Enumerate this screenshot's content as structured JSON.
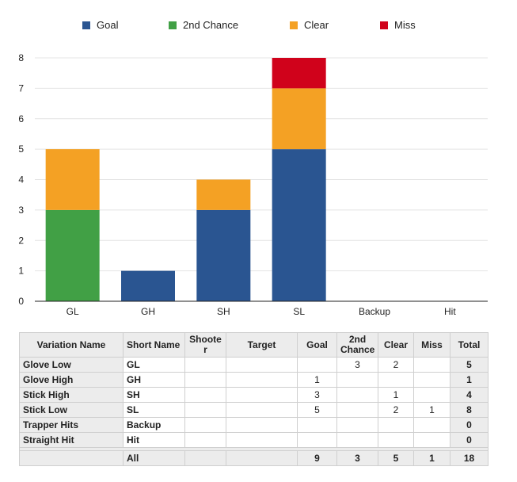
{
  "chart_data": {
    "type": "bar",
    "stacked": true,
    "categories": [
      "GL",
      "GH",
      "SH",
      "SL",
      "Backup",
      "Hit"
    ],
    "series": [
      {
        "name": "Goal",
        "color": "#2a5591",
        "values": [
          0,
          1,
          3,
          5,
          0,
          0
        ]
      },
      {
        "name": "2nd Chance",
        "color": "#41a045",
        "values": [
          3,
          0,
          0,
          0,
          0,
          0
        ]
      },
      {
        "name": "Clear",
        "color": "#f4a124",
        "values": [
          2,
          0,
          1,
          2,
          0,
          0
        ]
      },
      {
        "name": "Miss",
        "color": "#d0021b",
        "values": [
          0,
          0,
          0,
          1,
          0,
          0
        ]
      }
    ],
    "title": "",
    "xlabel": "",
    "ylabel": "",
    "ylim": [
      0,
      8
    ],
    "yticks": [
      0,
      1,
      2,
      3,
      4,
      5,
      6,
      7,
      8
    ],
    "grid": true,
    "legend_position": "top"
  },
  "table": {
    "headers": {
      "variation": "Variation Name",
      "short": "Short Name",
      "shooter": "Shooter",
      "target": "Target",
      "goal": "Goal",
      "second": "2nd Chance",
      "clear": "Clear",
      "miss": "Miss",
      "total": "Total"
    },
    "rows": [
      {
        "name": "Glove Low",
        "short": "GL",
        "shooter": "",
        "target": "",
        "goal": "",
        "second": "3",
        "clear": "2",
        "miss": "",
        "total": "5"
      },
      {
        "name": "Glove High",
        "short": "GH",
        "shooter": "",
        "target": "",
        "goal": "1",
        "second": "",
        "clear": "",
        "miss": "",
        "total": "1"
      },
      {
        "name": "Stick High",
        "short": "SH",
        "shooter": "",
        "target": "",
        "goal": "3",
        "second": "",
        "clear": "1",
        "miss": "",
        "total": "4"
      },
      {
        "name": "Stick Low",
        "short": "SL",
        "shooter": "",
        "target": "",
        "goal": "5",
        "second": "",
        "clear": "2",
        "miss": "1",
        "total": "8"
      },
      {
        "name": "Trapper Hits",
        "short": "Backup",
        "shooter": "",
        "target": "",
        "goal": "",
        "second": "",
        "clear": "",
        "miss": "",
        "total": "0"
      },
      {
        "name": "Straight Hit",
        "short": "Hit",
        "shooter": "",
        "target": "",
        "goal": "",
        "second": "",
        "clear": "",
        "miss": "",
        "total": "0"
      }
    ],
    "totals": {
      "label": "All",
      "goal": "9",
      "second": "3",
      "clear": "5",
      "miss": "1",
      "total": "18"
    }
  }
}
